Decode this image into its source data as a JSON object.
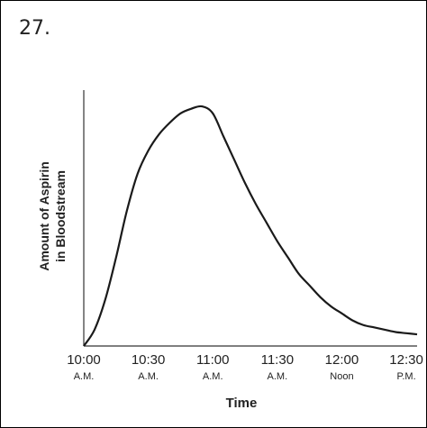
{
  "question_number": "27.",
  "chart_data": {
    "type": "line",
    "title": "",
    "xlabel": "Time",
    "ylabel_lines": [
      "Amount of Aspirin",
      "in Bloodstream"
    ],
    "x_ticks": [
      {
        "time": "10:00",
        "period": "A.M."
      },
      {
        "time": "10:30",
        "period": "A.M."
      },
      {
        "time": "11:00",
        "period": "A.M."
      },
      {
        "time": "11:30",
        "period": "A.M."
      },
      {
        "time": "12:00",
        "period": "Noon"
      },
      {
        "time": "12:30",
        "period": "P.M."
      }
    ],
    "xlim_minutes_after_10am": [
      0,
      155
    ],
    "ylim": [
      0,
      1.1
    ],
    "grid": false,
    "series": [
      {
        "x_minutes_after_10am": [
          0,
          5,
          10,
          15,
          20,
          25,
          30,
          35,
          40,
          45,
          50,
          55,
          60,
          65,
          70,
          75,
          80,
          85,
          90,
          95,
          100,
          105,
          110,
          115,
          120,
          125,
          130,
          135,
          140,
          145,
          150,
          155
        ],
        "values": [
          0,
          0.07,
          0.2,
          0.38,
          0.58,
          0.74,
          0.84,
          0.91,
          0.96,
          1.0,
          1.02,
          1.03,
          1.0,
          0.9,
          0.8,
          0.7,
          0.61,
          0.53,
          0.45,
          0.38,
          0.31,
          0.26,
          0.21,
          0.17,
          0.14,
          0.11,
          0.09,
          0.08,
          0.07,
          0.06,
          0.055,
          0.05
        ]
      }
    ]
  },
  "colors": {
    "line": "#1a1a1a",
    "axis": "#333333",
    "text": "#222222"
  }
}
